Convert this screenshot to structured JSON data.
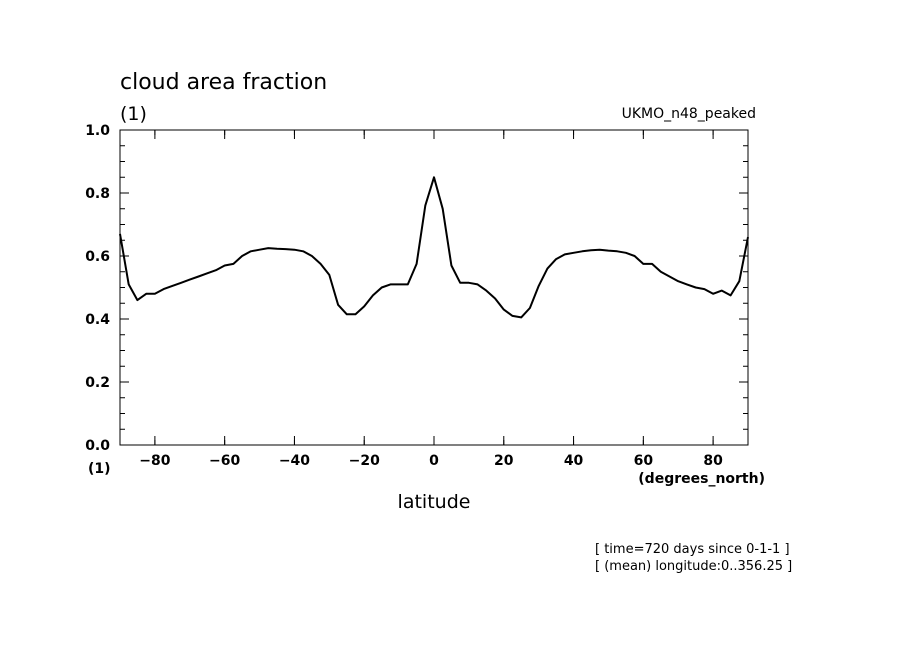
{
  "chart_data": {
    "type": "line",
    "title": "cloud area fraction",
    "y_units_label": "(1)",
    "x_units_label": "(degrees_north)",
    "xlabel": "latitude",
    "model_label": "UKMO_n48_peaked",
    "notes": [
      "[ time=720 days since 0-1-1 ]",
      "[ (mean) longitude:0..356.25 ]"
    ],
    "xlim": [
      -90,
      90
    ],
    "ylim": [
      0.0,
      1.0
    ],
    "x_ticks": [
      -80,
      -60,
      -40,
      -20,
      0,
      20,
      40,
      60,
      80
    ],
    "x_tick_labels": [
      "-80",
      "-60",
      "-40",
      "-20",
      "0",
      "20",
      "40",
      "60",
      "80"
    ],
    "y_ticks": [
      0.0,
      0.2,
      0.4,
      0.6,
      0.8,
      1.0
    ],
    "y_tick_labels": [
      "0.0",
      "0.2",
      "0.4",
      "0.6",
      "0.8",
      "1.0"
    ],
    "grid": false,
    "series": [
      {
        "x": [
          -90,
          -87.5,
          -85,
          -82.5,
          -80,
          -77.5,
          -75,
          -72.5,
          -70,
          -67.5,
          -65,
          -62.5,
          -60,
          -57.5,
          -55,
          -52.5,
          -50,
          -47.5,
          -45,
          -42.5,
          -40,
          -37.5,
          -35,
          -32.5,
          -30,
          -27.5,
          -25,
          -22.5,
          -20,
          -17.5,
          -15,
          -12.5,
          -10,
          -7.5,
          -5,
          -2.5,
          0,
          2.5,
          5,
          7.5,
          10,
          12.5,
          15,
          17.5,
          20,
          22.5,
          25,
          27.5,
          30,
          32.5,
          35,
          37.5,
          40,
          42.5,
          45,
          47.5,
          50,
          52.5,
          55,
          57.5,
          60,
          62.5,
          65,
          67.5,
          70,
          72.5,
          75,
          77.5,
          80,
          82.5,
          85,
          87.5,
          90
        ],
        "values": [
          0.67,
          0.51,
          0.46,
          0.48,
          0.48,
          0.495,
          0.505,
          0.515,
          0.525,
          0.535,
          0.545,
          0.555,
          0.57,
          0.575,
          0.6,
          0.615,
          0.62,
          0.625,
          0.623,
          0.622,
          0.62,
          0.615,
          0.6,
          0.575,
          0.54,
          0.445,
          0.415,
          0.415,
          0.44,
          0.475,
          0.5,
          0.51,
          0.51,
          0.51,
          0.575,
          0.76,
          0.85,
          0.75,
          0.57,
          0.515,
          0.515,
          0.51,
          0.49,
          0.465,
          0.43,
          0.41,
          0.405,
          0.435,
          0.505,
          0.56,
          0.59,
          0.605,
          0.61,
          0.615,
          0.618,
          0.62,
          0.617,
          0.615,
          0.61,
          0.6,
          0.575,
          0.575,
          0.55,
          0.535,
          0.52,
          0.51,
          0.5,
          0.495,
          0.48,
          0.49,
          0.475,
          0.52,
          0.66
        ]
      }
    ]
  }
}
